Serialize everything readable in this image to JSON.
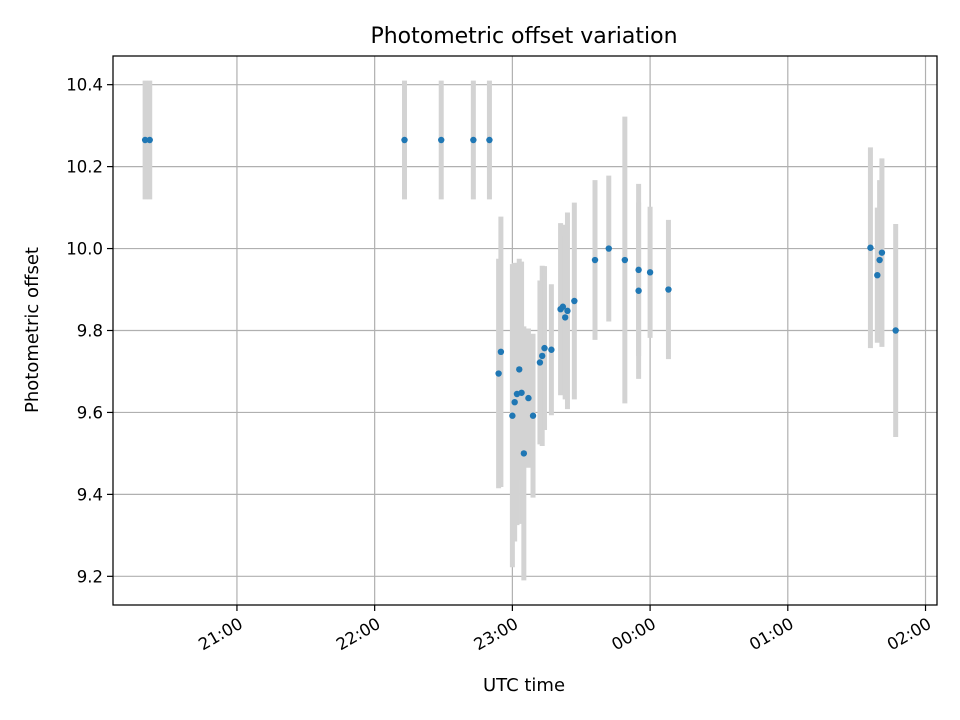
{
  "chart_data": {
    "type": "scatter",
    "title": "Photometric offset variation",
    "xlabel": "UTC time",
    "ylabel": "Photometric offset",
    "x_axis_kind": "time",
    "xlim": [
      "20:06",
      "02:05"
    ],
    "ylim": [
      9.13,
      10.47
    ],
    "xticks": [
      "21:00",
      "22:00",
      "23:00",
      "00:00",
      "01:00",
      "02:00"
    ],
    "yticks": [
      "9.2",
      "9.4",
      "9.6",
      "9.8",
      "10.0",
      "10.2",
      "10.4"
    ],
    "grid": true,
    "colors": {
      "points": "#1f77b4",
      "errorbars": "#d3d3d3",
      "grid": "#b0b0b0"
    },
    "points": [
      {
        "t": "20:20",
        "y": 10.265,
        "err": 0.145
      },
      {
        "t": "20:22",
        "y": 10.265,
        "err": 0.145
      },
      {
        "t": "22:13",
        "y": 10.265,
        "err": 0.145
      },
      {
        "t": "22:29",
        "y": 10.265,
        "err": 0.145
      },
      {
        "t": "22:43",
        "y": 10.265,
        "err": 0.145
      },
      {
        "t": "22:50",
        "y": 10.265,
        "err": 0.145
      },
      {
        "t": "22:54",
        "y": 9.695,
        "err": 0.28
      },
      {
        "t": "22:55",
        "y": 9.748,
        "err": 0.33
      },
      {
        "t": "23:00",
        "y": 9.592,
        "err": 0.37
      },
      {
        "t": "23:01",
        "y": 9.625,
        "err": 0.34
      },
      {
        "t": "23:02",
        "y": 9.645,
        "err": 0.32
      },
      {
        "t": "23:03",
        "y": 9.705,
        "err": 0.27
      },
      {
        "t": "23:04",
        "y": 9.648,
        "err": 0.32
      },
      {
        "t": "23:05",
        "y": 9.5,
        "err": 0.31
      },
      {
        "t": "23:07",
        "y": 9.635,
        "err": 0.17
      },
      {
        "t": "23:09",
        "y": 9.592,
        "err": 0.2
      },
      {
        "t": "23:12",
        "y": 9.722,
        "err": 0.2
      },
      {
        "t": "23:13",
        "y": 9.738,
        "err": 0.22
      },
      {
        "t": "23:14",
        "y": 9.757,
        "err": 0.2
      },
      {
        "t": "23:17",
        "y": 9.753,
        "err": 0.16
      },
      {
        "t": "23:21",
        "y": 9.852,
        "err": 0.21
      },
      {
        "t": "23:22",
        "y": 9.858,
        "err": 0.2
      },
      {
        "t": "23:23",
        "y": 9.832,
        "err": 0.2
      },
      {
        "t": "23:24",
        "y": 9.848,
        "err": 0.24
      },
      {
        "t": "23:27",
        "y": 9.872,
        "err": 0.24
      },
      {
        "t": "23:36",
        "y": 9.972,
        "err": 0.195
      },
      {
        "t": "23:42",
        "y": 10.0,
        "err": 0.178
      },
      {
        "t": "23:49",
        "y": 9.972,
        "err": 0.35
      },
      {
        "t": "23:55",
        "y": 9.948,
        "err": 0.21
      },
      {
        "t": "23:55",
        "y": 9.897,
        "err": 0.215
      },
      {
        "t": "00:00",
        "y": 9.942,
        "err": 0.16
      },
      {
        "t": "00:08",
        "y": 9.9,
        "err": 0.17
      },
      {
        "t": "01:36",
        "y": 10.002,
        "err": 0.245
      },
      {
        "t": "01:39",
        "y": 9.935,
        "err": 0.165
      },
      {
        "t": "01:40",
        "y": 9.972,
        "err": 0.195
      },
      {
        "t": "01:41",
        "y": 9.99,
        "err": 0.23
      },
      {
        "t": "01:47",
        "y": 9.8,
        "err": 0.26
      }
    ]
  }
}
